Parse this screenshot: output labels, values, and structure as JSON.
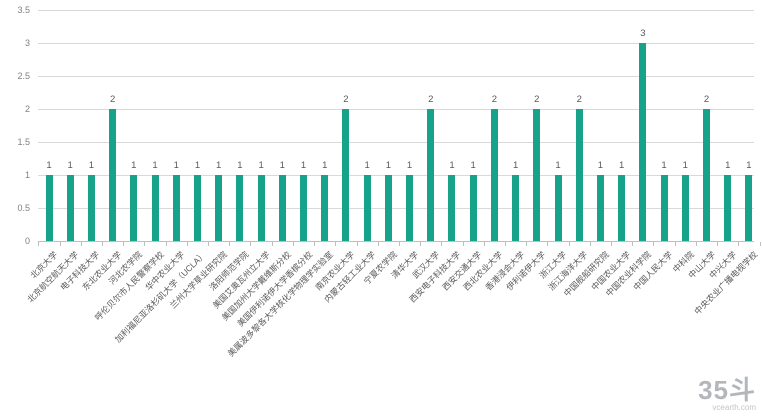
{
  "chart_data": {
    "type": "bar",
    "title": "",
    "xlabel": "",
    "ylabel": "",
    "ylim": [
      0,
      3.5
    ],
    "ytick_labels": [
      "0",
      "0.5",
      "1",
      "1.5",
      "2",
      "2.5",
      "3",
      "3.5"
    ],
    "grid": true,
    "legend": "none",
    "bar_color": "#17a389",
    "categories": [
      "北京大学",
      "北京航空航天大学",
      "电子科技大学",
      "东北农业大学",
      "河北农学院",
      "呼伦贝尔市人民警察学校",
      "华中农业大学",
      "加利福尼亚洛杉矶大学（UCLA）",
      "兰州大学草业研究院",
      "洛阳师范学院",
      "美国艾奥瓦州立大学",
      "美国加州大学戴维斯分校",
      "美国伊利诺伊大学香槟分校",
      "美属波多黎各大学核化学物理学实验室",
      "南京农业大学",
      "内蒙古轻工业大学",
      "宁夏农学院",
      "清华大学",
      "武汉大学",
      "西安电子科技大学",
      "西安交通大学",
      "西北农业大学",
      "香港浸会大学",
      "伊利诺伊大学",
      "浙江大学",
      "浙江海洋大学",
      "中国舰船研究院",
      "中国农业大学",
      "中国农业科学院",
      "中国人民大学",
      "中科院",
      "中山大学",
      "中兴大学",
      "中央农业广播电视学校"
    ],
    "values": [
      1,
      1,
      1,
      2,
      1,
      1,
      1,
      1,
      1,
      1,
      1,
      1,
      1,
      1,
      2,
      1,
      1,
      1,
      2,
      1,
      1,
      2,
      1,
      2,
      1,
      2,
      1,
      1,
      3,
      1,
      1,
      2,
      1,
      1
    ]
  },
  "watermark": {
    "line1": "35斗",
    "line2": "vcearth.com"
  }
}
